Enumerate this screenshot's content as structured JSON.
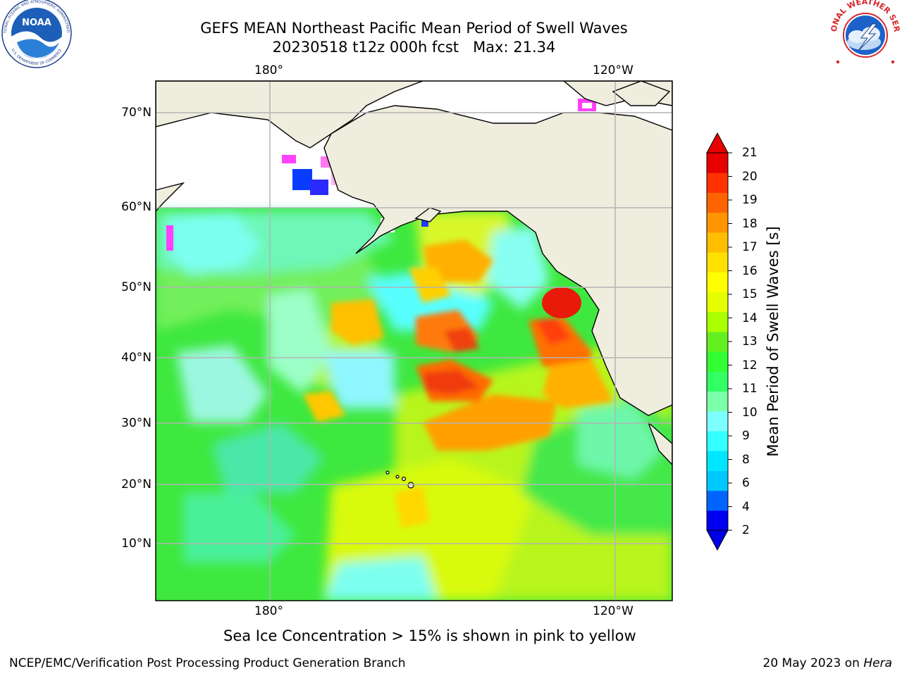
{
  "header": {
    "title_line1": "GEFS MEAN Northeast Pacific Mean Period of Swell Waves",
    "title_line2": "20230518 t12z 000h fcst   Max: 21.34"
  },
  "logos": {
    "noaa": {
      "name": "NOAA",
      "ring_text": "NATIONAL OCEANIC AND ATMOSPHERIC ADMINISTRATION",
      "bottom_text": "U.S. DEPARTMENT OF COMMERCE"
    },
    "nws": {
      "ring_text": "NATIONAL WEATHER SERVICE"
    }
  },
  "map": {
    "top_lon_labels": [
      "180°",
      "120°W"
    ],
    "bottom_lon_labels": [
      "180°",
      "120°W"
    ],
    "lat_labels": [
      "70°N",
      "60°N",
      "50°N",
      "40°N",
      "30°N",
      "20°N",
      "10°N"
    ],
    "land_color": "#efedde",
    "grid_color": "#b4b4b4"
  },
  "colorbar": {
    "label": "Mean Period of Swell Waves [s]",
    "ticks": [
      "21",
      "20",
      "19",
      "18",
      "17",
      "16",
      "15",
      "14",
      "13",
      "12",
      "11",
      "10",
      "9",
      "8",
      "6",
      "4",
      "2"
    ],
    "colors": [
      "#0000f0",
      "#0064ff",
      "#00c8ff",
      "#00e6ff",
      "#32ffff",
      "#7dffff",
      "#7dffaa",
      "#32ff64",
      "#32ff32",
      "#64f020",
      "#aaff00",
      "#e6ff00",
      "#ffff00",
      "#ffe100",
      "#ffbe00",
      "#ff9600",
      "#ff6400",
      "#ff3200",
      "#e60000"
    ],
    "under_color": "#0000e6",
    "over_color": "#e60000"
  },
  "notes": {
    "sea_ice": "Sea Ice Concentration > 15% is shown in pink to yellow"
  },
  "footer": {
    "left": "NCEP/EMC/Verification Post Processing Product Generation Branch",
    "date": "20 May 2023 on ",
    "host": "Hera"
  }
}
